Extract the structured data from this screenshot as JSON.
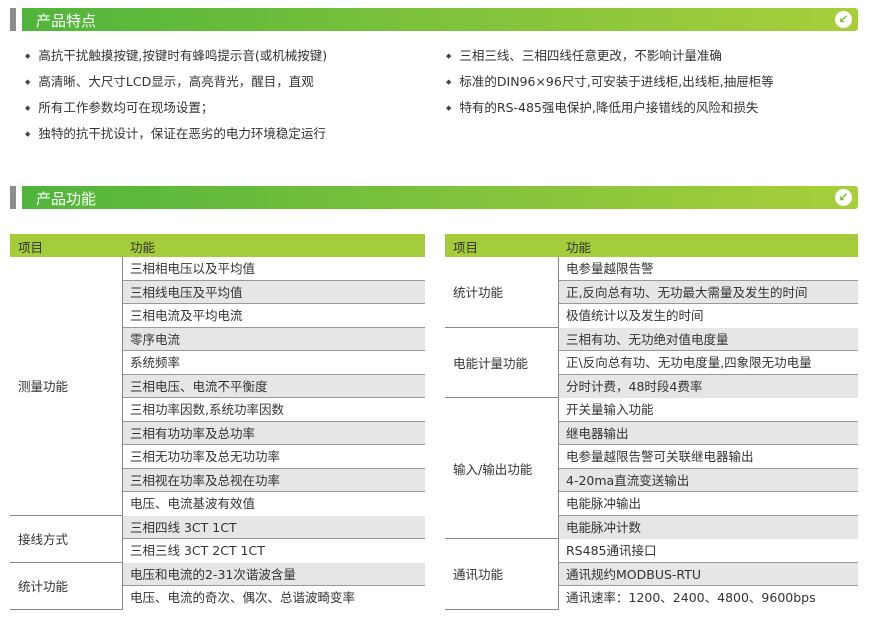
{
  "section1": {
    "title": "产品特点",
    "icon": "chevron-down-left-icon"
  },
  "features_left": [
    "高抗干扰触摸按键,按键时有蜂鸣提示音(或机械按键)",
    "高清晰、大尺寸LCD显示，高亮背光，醒目，直观",
    "所有工作参数均可在现场设置；",
    "独特的抗干扰设计，保证在恶劣的电力环境稳定运行"
  ],
  "features_right": [
    "三相三线、三相四线任意更改，不影响计量准确",
    "标准的DIN96×96尺寸,可安装于进线柜,出线柜,抽屉柜等",
    "特有的RS-485强电保护,降低用户接错线的风险和损失"
  ],
  "section2": {
    "title": "产品功能",
    "icon": "chevron-down-left-icon"
  },
  "colors": {
    "header_green": "#a5cc3a",
    "row_gray": "#e6e6e6",
    "bar_gradient_start": "#4fb53a",
    "bar_gradient_end": "#a8cf3a"
  },
  "tables": [
    {
      "headers": [
        "项目",
        "功能"
      ],
      "groups": [
        {
          "item": "测量功能",
          "functions": [
            "三相相电压以及平均值",
            "三相线电压及平均值",
            "三相电流及平均电流",
            "零序电流",
            "系统频率",
            "三相电压、电流不平衡度",
            "三相功率因数,系统功率因数",
            "三相有功功率及总功率",
            "三相无功功率及总无功功率",
            "三相视在功率及总视在功率",
            "电压、电流基波有效值"
          ]
        },
        {
          "item": "接线方式",
          "functions": [
            "三相四线 3CT 1CT",
            "三相三线 3CT 2CT 1CT"
          ]
        },
        {
          "item": "统计功能",
          "functions": [
            "电压和电流的2-31次谐波含量",
            "电压、电流的奇次、偶次、总谐波畸变率"
          ]
        }
      ]
    },
    {
      "headers": [
        "项目",
        "功能"
      ],
      "groups": [
        {
          "item": "统计功能",
          "functions": [
            "电参量越限告警",
            "正,反向总有功、无功最大需量及发生的时间",
            "极值统计以及发生的时间"
          ]
        },
        {
          "item": "电能计量功能",
          "functions": [
            "三相有功、无功绝对值电度量",
            "正\\反向总有功、无功电度量,四象限无功电量",
            "分时计费，48时段4费率"
          ]
        },
        {
          "item": "输入/输出功能",
          "functions": [
            "开关量输入功能",
            "继电器输出",
            "电参量越限告警可关联继电器输出",
            "4-20ma直流变送输出",
            "电能脉冲输出",
            "电能脉冲计数"
          ]
        },
        {
          "item": "通讯功能",
          "functions": [
            "RS485通讯接口",
            "通讯规约MODBUS-RTU",
            "通讯速率：1200、2400、4800、9600bps"
          ]
        }
      ]
    }
  ]
}
